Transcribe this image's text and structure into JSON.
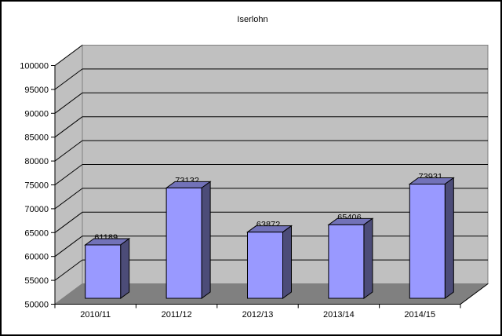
{
  "chart_data": {
    "type": "bar",
    "style": "3d",
    "title": "Iserlohn",
    "categories": [
      "2010/11",
      "2011/12",
      "2012/13",
      "2013/14",
      "2014/15"
    ],
    "values": [
      61189,
      73132,
      63872,
      65406,
      73931
    ],
    "xlabel": "",
    "ylabel": "",
    "ylim": [
      50000,
      100000
    ],
    "ytick_step": 5000,
    "ytick_labels": [
      "50000",
      "55000",
      "60000",
      "65000",
      "70000",
      "75000",
      "80000",
      "85000",
      "90000",
      "95000",
      "100000"
    ],
    "grid": true,
    "legend": false,
    "data_labels_visible": true,
    "colors": {
      "bar_front": "#9999ff",
      "bar_top": "#7272b8",
      "bar_side": "#4c4c78",
      "wall": "#c0c0c0",
      "floor": "#808080",
      "wall_border": "#808080",
      "gridline": "#000000",
      "axis": "#000000",
      "text": "#000000",
      "background": "#ffffff"
    }
  }
}
